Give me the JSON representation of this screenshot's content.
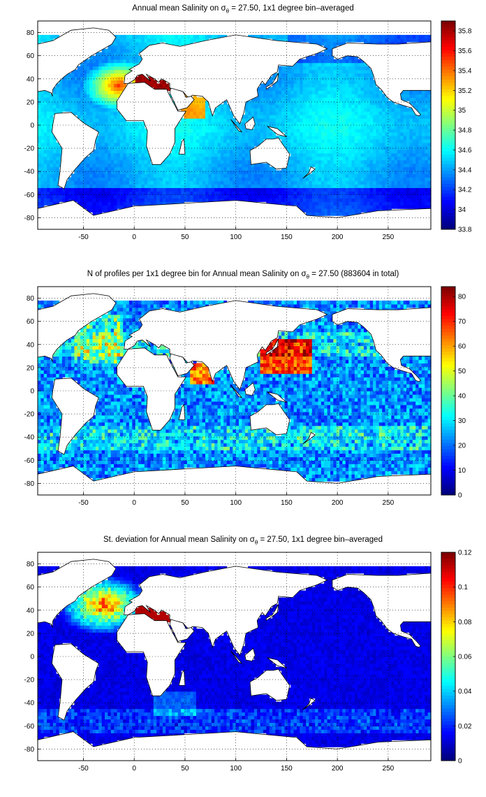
{
  "page_id_note": "",
  "panels": [
    {
      "title_pre": "Annual mean Salinity on ",
      "title_sym": "σ",
      "title_sub": "θ",
      "title_post": " = 27.50, 1x1 degree bin–averaged",
      "cmap": "jet",
      "field": "salinity"
    },
    {
      "title_pre": "N of profiles per 1x1 degree bin for Annual mean Salinity on ",
      "title_sym": "σ",
      "title_sub": "θ",
      "title_post": " = 27.50 (883604 in total)",
      "cmap": "jet",
      "field": "count"
    },
    {
      "title_pre": "St. deviation for Annual mean Salinity on ",
      "title_sym": "σ",
      "title_sub": "θ",
      "title_post": " = 27.50, 1x1 degree bin–averaged",
      "cmap": "jet",
      "field": "std"
    }
  ],
  "chart_data": [
    {
      "type": "heatmap",
      "title": "Annual mean Salinity on σθ = 27.50, 1x1 degree bin–averaged",
      "xticks": [
        -50,
        0,
        50,
        100,
        150,
        200,
        250
      ],
      "yticks": [
        80,
        60,
        40,
        20,
        0,
        -20,
        -40,
        -60,
        -80
      ],
      "xlim": [
        -95,
        292
      ],
      "ylim": [
        -90,
        90
      ],
      "colorbar_ticks": [
        "35.8",
        "35.6",
        "35.4",
        "35.2",
        "35",
        "34.8",
        "34.6",
        "34.4",
        "34.2",
        "34",
        "33.8"
      ],
      "colorbar_range": [
        33.8,
        35.9
      ],
      "grid": true
    },
    {
      "type": "heatmap",
      "title": "N of profiles per 1x1 degree bin for Annual mean Salinity on σθ = 27.50 (883604 in total)",
      "xticks": [
        -50,
        0,
        50,
        100,
        150,
        200,
        250
      ],
      "yticks": [
        80,
        60,
        40,
        20,
        0,
        -20,
        -40,
        -60,
        -80
      ],
      "xlim": [
        -95,
        292
      ],
      "ylim": [
        -90,
        90
      ],
      "colorbar_ticks": [
        "80",
        "70",
        "60",
        "50",
        "40",
        "30",
        "20",
        "10",
        "0"
      ],
      "colorbar_range": [
        0,
        84
      ],
      "grid": true
    },
    {
      "type": "heatmap",
      "title": "St. deviation for Annual mean Salinity on σθ = 27.50, 1x1 degree bin–averaged",
      "xticks": [
        -50,
        0,
        50,
        100,
        150,
        200,
        250
      ],
      "yticks": [
        80,
        60,
        40,
        20,
        0,
        -20,
        -40,
        -60,
        -80
      ],
      "xlim": [
        -95,
        292
      ],
      "ylim": [
        -90,
        90
      ],
      "colorbar_ticks": [
        "0.12",
        "0.1",
        "0.08",
        "0.06",
        "0.04",
        "0.02",
        "0"
      ],
      "colorbar_range": [
        0,
        0.12
      ],
      "grid": true
    }
  ]
}
